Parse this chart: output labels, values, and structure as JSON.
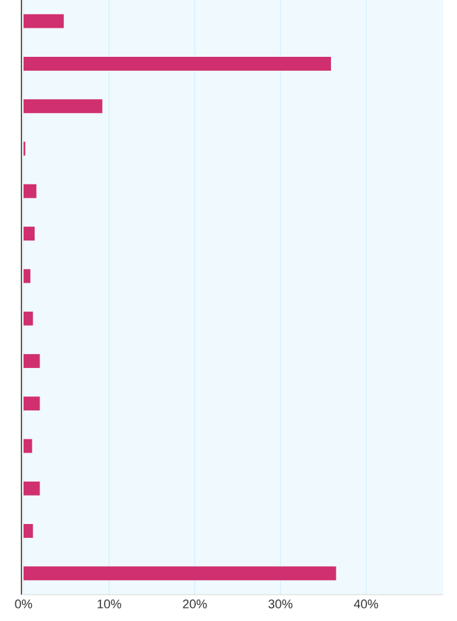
{
  "chart_data": {
    "type": "bar",
    "orientation": "horizontal",
    "color": "#d0306f",
    "categories": [
      null,
      null,
      null,
      null,
      null,
      null,
      null,
      null,
      null,
      null,
      null,
      null,
      null,
      null
    ],
    "values": [
      4.7,
      35.9,
      9.2,
      0.2,
      1.5,
      1.3,
      0.8,
      1.1,
      1.9,
      1.9,
      1.0,
      1.9,
      1.1,
      36.5
    ],
    "xlim": [
      0,
      49
    ],
    "xticks": [
      {
        "value": 0,
        "label": "0%"
      },
      {
        "value": 10,
        "label": "10%"
      },
      {
        "value": 20,
        "label": "20%"
      },
      {
        "value": 30,
        "label": "30%"
      },
      {
        "value": 40,
        "label": "40%"
      }
    ],
    "grid": "x"
  }
}
